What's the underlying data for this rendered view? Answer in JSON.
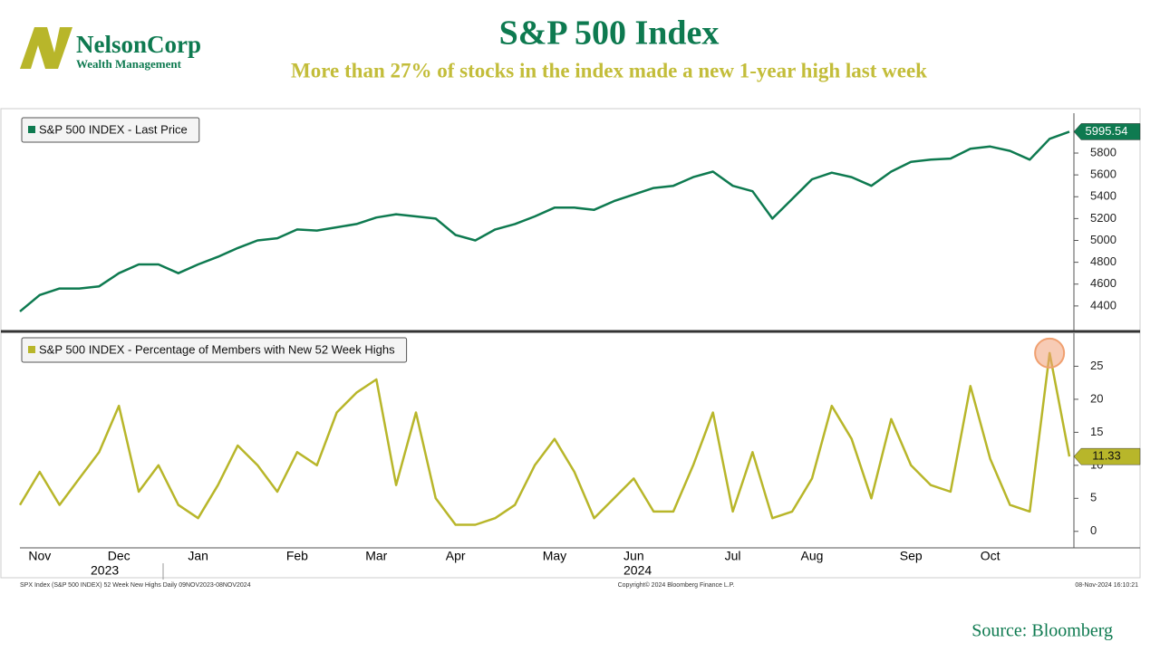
{
  "header": {
    "logo_name": "NelsonCorp",
    "logo_sub": "Wealth Management",
    "title": "S&P 500 Index",
    "subtitle": "More than 27% of stocks in the index made a new 1-year high last week"
  },
  "chart_data": [
    {
      "type": "line",
      "series": [
        {
          "name": "S&P 500 INDEX - Last Price",
          "color": "#0e7a50",
          "values": [
            4350,
            4500,
            4560,
            4560,
            4580,
            4700,
            4780,
            4780,
            4700,
            4780,
            4850,
            4930,
            5000,
            5020,
            5100,
            5090,
            5120,
            5150,
            5210,
            5240,
            5220,
            5200,
            5050,
            5000,
            5100,
            5150,
            5220,
            5300,
            5300,
            5280,
            5360,
            5420,
            5480,
            5500,
            5580,
            5630,
            5500,
            5450,
            5200,
            5380,
            5560,
            5620,
            5580,
            5500,
            5630,
            5720,
            5740,
            5750,
            5840,
            5860,
            5820,
            5740,
            5930,
            5995.54
          ]
        }
      ],
      "ylim": [
        4175,
        6165
      ],
      "yticks": [
        4400,
        4600,
        4800,
        5000,
        5200,
        5400,
        5600,
        5800
      ]
    },
    {
      "type": "line",
      "series": [
        {
          "name": "S&P 500 INDEX - Percentage of Members with New 52 Week Highs",
          "color": "#b8b62a",
          "values": [
            4,
            9,
            4,
            8,
            12,
            19,
            6,
            10,
            4,
            2,
            7,
            13,
            10,
            6,
            12,
            10,
            18,
            21,
            23,
            7,
            18,
            5,
            1,
            1,
            2,
            4,
            10,
            14,
            9,
            2,
            5,
            8,
            3,
            3,
            10,
            18,
            3,
            12,
            2,
            3,
            8,
            19,
            14,
            5,
            17,
            10,
            7,
            6,
            22,
            11,
            4,
            3,
            27,
            11.33
          ]
        }
      ],
      "categories": [
        null,
        "Nov",
        null,
        null,
        null,
        "Dec",
        null,
        null,
        null,
        "Jan",
        null,
        null,
        null,
        null,
        "Feb",
        null,
        null,
        null,
        "Mar",
        null,
        null,
        null,
        "Apr",
        null,
        null,
        null,
        null,
        "May",
        null,
        null,
        null,
        "Jun",
        null,
        null,
        null,
        null,
        "Jul",
        null,
        null,
        null,
        "Aug",
        null,
        null,
        null,
        null,
        "Sep",
        null,
        null,
        null,
        "Oct",
        null,
        null,
        null,
        null
      ],
      "years": [
        "2023",
        "2024"
      ],
      "ylim": [
        -2.5,
        30
      ],
      "yticks": [
        0,
        5,
        10,
        15,
        20,
        25
      ]
    }
  ],
  "footer": {
    "left": "SPX Index (S&P 500 INDEX) 52 Week New Highs  Daily 09NOV2023-08NOV2024",
    "center": "Copyright© 2024 Bloomberg Finance L.P.",
    "right": "08-Nov-2024 16:10:21",
    "source": "Source: Bloomberg"
  }
}
